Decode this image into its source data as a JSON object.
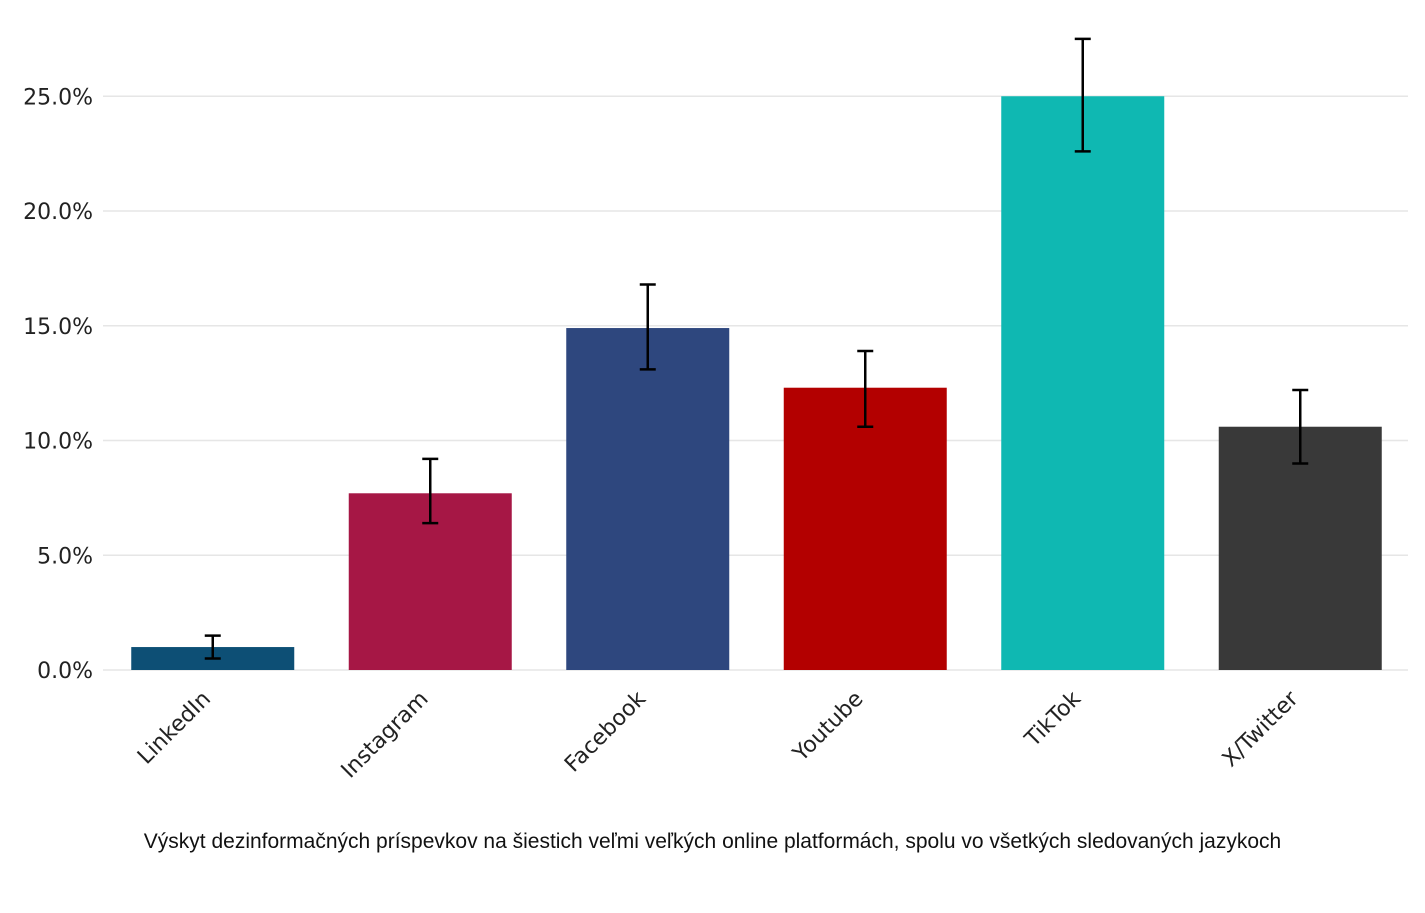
{
  "chart_data": {
    "type": "bar",
    "categories": [
      "LinkedIn",
      "Instagram",
      "Facebook",
      "Youtube",
      "TikTok",
      "X/Twitter"
    ],
    "values": [
      1.0,
      7.7,
      14.9,
      12.3,
      25.0,
      10.6
    ],
    "error_low": [
      0.5,
      6.4,
      13.1,
      10.6,
      22.6,
      9.0
    ],
    "error_high": [
      1.5,
      9.2,
      16.8,
      13.9,
      27.5,
      12.2
    ],
    "colors": [
      "#0d4f75",
      "#a61745",
      "#2e477e",
      "#b30000",
      "#0fb8b2",
      "#393939"
    ],
    "ylim": [
      0,
      27.5
    ],
    "yticks": [
      0,
      5,
      10,
      15,
      20,
      25
    ],
    "ytick_labels": [
      "0.0%",
      "5.0%",
      "10.0%",
      "15.0%",
      "20.0%",
      "25.0%"
    ],
    "grid": true,
    "caption": "Výskyt dezinformačných príspevkov na šiestich veľmi veľkých online platformách, spolu vo všetkých sledovaných jazykoch"
  }
}
